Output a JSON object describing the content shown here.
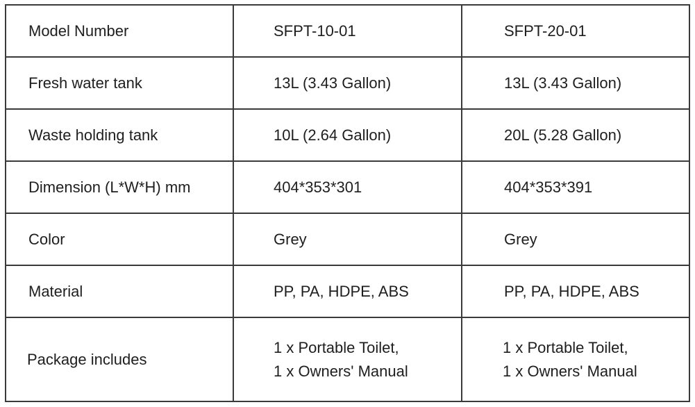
{
  "rows": [
    {
      "label": "Model Number",
      "a": "SFPT-10-01",
      "b": "SFPT-20-01"
    },
    {
      "label": "Fresh water tank",
      "a": "13L (3.43 Gallon)",
      "b": "13L (3.43 Gallon)"
    },
    {
      "label": "Waste holding tank",
      "a": "10L (2.64 Gallon)",
      "b": "20L (5.28 Gallon)"
    },
    {
      "label": "Dimension (L*W*H) mm",
      "a": "404*353*301",
      "b": "404*353*391"
    },
    {
      "label": "Color",
      "a": "Grey",
      "b": "Grey"
    },
    {
      "label": "Material",
      "a": "PP, PA, HDPE, ABS",
      "b": "PP, PA, HDPE, ABS"
    },
    {
      "label": "Package includes",
      "a": [
        "1 x Portable Toilet,",
        "1 x Owners' Manual"
      ],
      "b": [
        "1 x Portable Toilet,",
        "1 x Owners' Manual"
      ]
    }
  ]
}
